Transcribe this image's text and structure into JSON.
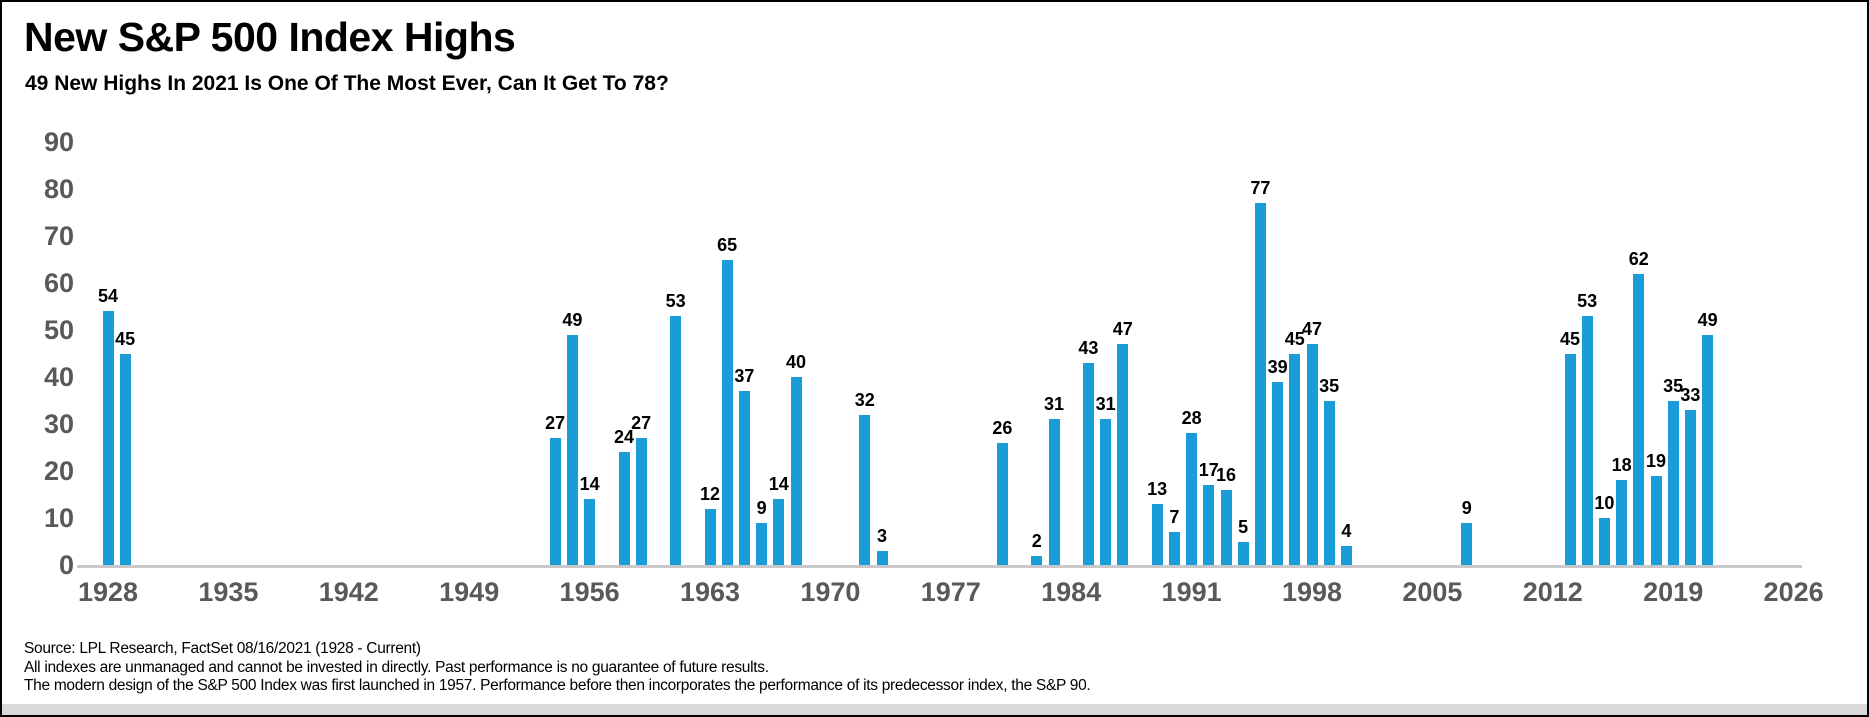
{
  "header": {
    "title": "New S&P 500 Index Highs",
    "subtitle": "49 New Highs In 2021 Is One Of The Most Ever, Can It Get To 78?"
  },
  "chart_data": {
    "type": "bar",
    "title": "New S&P 500 Index Highs",
    "subtitle": "49 New Highs In 2021 Is One Of The Most Ever, Can It Get To 78?",
    "xlabel": "",
    "ylabel": "",
    "x": [
      1928,
      1929,
      1954,
      1955,
      1956,
      1958,
      1959,
      1961,
      1963,
      1964,
      1965,
      1966,
      1967,
      1968,
      1972,
      1973,
      1980,
      1982,
      1983,
      1985,
      1986,
      1987,
      1989,
      1990,
      1991,
      1992,
      1993,
      1994,
      1995,
      1996,
      1997,
      1998,
      1999,
      2000,
      2007,
      2013,
      2014,
      2015,
      2016,
      2017,
      2018,
      2019,
      2020,
      2021
    ],
    "values": [
      54,
      45,
      27,
      49,
      14,
      24,
      27,
      53,
      12,
      65,
      37,
      9,
      14,
      40,
      32,
      3,
      26,
      2,
      31,
      43,
      31,
      47,
      13,
      7,
      28,
      17,
      16,
      5,
      77,
      39,
      45,
      47,
      35,
      4,
      9,
      45,
      53,
      10,
      18,
      62,
      19,
      35,
      33,
      49
    ],
    "data_labels": true,
    "xlim": [
      1926,
      2030
    ],
    "ylim": [
      0,
      90
    ],
    "x_ticks": [
      1928,
      1935,
      1942,
      1949,
      1956,
      1963,
      1970,
      1977,
      1984,
      1991,
      1998,
      2005,
      2012,
      2019,
      2026
    ],
    "y_ticks": [
      0,
      10,
      20,
      30,
      40,
      50,
      60,
      70,
      80,
      90
    ],
    "grid": false,
    "legend": false,
    "bar_color": "#1a9cd8"
  },
  "colors": {
    "bar": "#1a9cd8",
    "axis_text": "#595959",
    "axis_line": "#c8c8c8",
    "bottom_strip": "#d9d9d9"
  },
  "footer": {
    "line1": "Source: LPL Research, FactSet 08/16/2021 (1928 - Current)",
    "line2": "All indexes are unmanaged and cannot be invested in directly. Past performance is no guarantee of future results.",
    "line3": "The modern design of the S&P 500 Index was first launched in 1957. Performance before then incorporates the performance of its predecessor index, the S&P 90."
  }
}
